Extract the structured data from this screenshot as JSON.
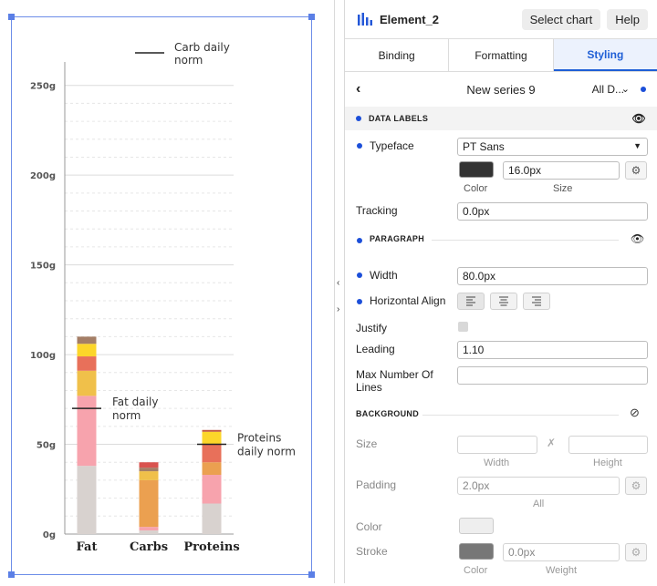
{
  "chart_data": {
    "type": "bar",
    "categories": [
      "Fat",
      "Carbs",
      "Proteins"
    ],
    "ylim": [
      0,
      260
    ],
    "yticks": [
      "0g",
      "50g",
      "100g",
      "150g",
      "200g",
      "250g"
    ],
    "ytick_values": [
      0,
      50,
      100,
      150,
      200,
      250
    ],
    "stacks": [
      [
        {
          "v": 38,
          "color": "#d8d2cf"
        },
        {
          "v": 39,
          "color": "#f7a3ad"
        },
        {
          "v": 14,
          "color": "#f0c04a"
        },
        {
          "v": 8,
          "color": "#e8705a"
        },
        {
          "v": 7,
          "color": "#fcd62a"
        },
        {
          "v": 4,
          "color": "#a47e66"
        }
      ],
      [
        {
          "v": 2,
          "color": "#d8d2cf"
        },
        {
          "v": 2,
          "color": "#f7a3ad"
        },
        {
          "v": 26,
          "color": "#eba050"
        },
        {
          "v": 5,
          "color": "#f0c04a"
        },
        {
          "v": 2,
          "color": "#a47e66"
        },
        {
          "v": 3,
          "color": "#d9534f"
        }
      ],
      [
        {
          "v": 17,
          "color": "#d8d2cf"
        },
        {
          "v": 16,
          "color": "#f7a3ad"
        },
        {
          "v": 7,
          "color": "#eba050"
        },
        {
          "v": 10,
          "color": "#e8705a"
        },
        {
          "v": 7,
          "color": "#fcd62a"
        },
        {
          "v": 1,
          "color": "#c0573d"
        }
      ]
    ],
    "norms": [
      {
        "bar": 0,
        "value": 70,
        "label_lines": [
          "Fat daily",
          "norm"
        ]
      },
      {
        "bar": 2,
        "value": 50,
        "label_lines": [
          "Proteins",
          "daily norm"
        ]
      }
    ],
    "legend_lines": [
      "Carb daily",
      "norm"
    ],
    "grid": true
  },
  "panel": {
    "title": "Element_2",
    "select_chart": "Select chart",
    "help": "Help",
    "tabs": [
      "Binding",
      "Formatting",
      "Styling"
    ],
    "series_name": "New series 9",
    "series_scope": "All D...",
    "data_labels": {
      "heading": "DATA LABELS",
      "typeface_label": "Typeface",
      "typeface_value": "PT Sans",
      "size_value": "16.0px",
      "color_caption": "Color",
      "size_caption": "Size",
      "tracking_label": "Tracking",
      "tracking_value": "0.0px",
      "color_swatch": "#333333"
    },
    "paragraph": {
      "heading": "PARAGRAPH",
      "width_label": "Width",
      "width_value": "80.0px",
      "halign_label": "Horizontal Align",
      "justify_label": "Justify",
      "leading_label": "Leading",
      "leading_value": "1.10",
      "max_lines_label_1": "Max Number Of",
      "max_lines_label_2": "Lines",
      "max_lines_value": ""
    },
    "background": {
      "heading": "BACKGROUND",
      "size_label": "Size",
      "width_caption": "Width",
      "height_caption": "Height",
      "padding_label": "Padding",
      "padding_value": "2.0px",
      "all_caption": "All",
      "color_label": "Color",
      "stroke_label": "Stroke",
      "stroke_value": "0.0px",
      "color_caption": "Color",
      "weight_caption": "Weight",
      "color_swatch": "#eeeeee",
      "stroke_swatch": "#777777"
    },
    "accent": "#1f5fd6"
  }
}
